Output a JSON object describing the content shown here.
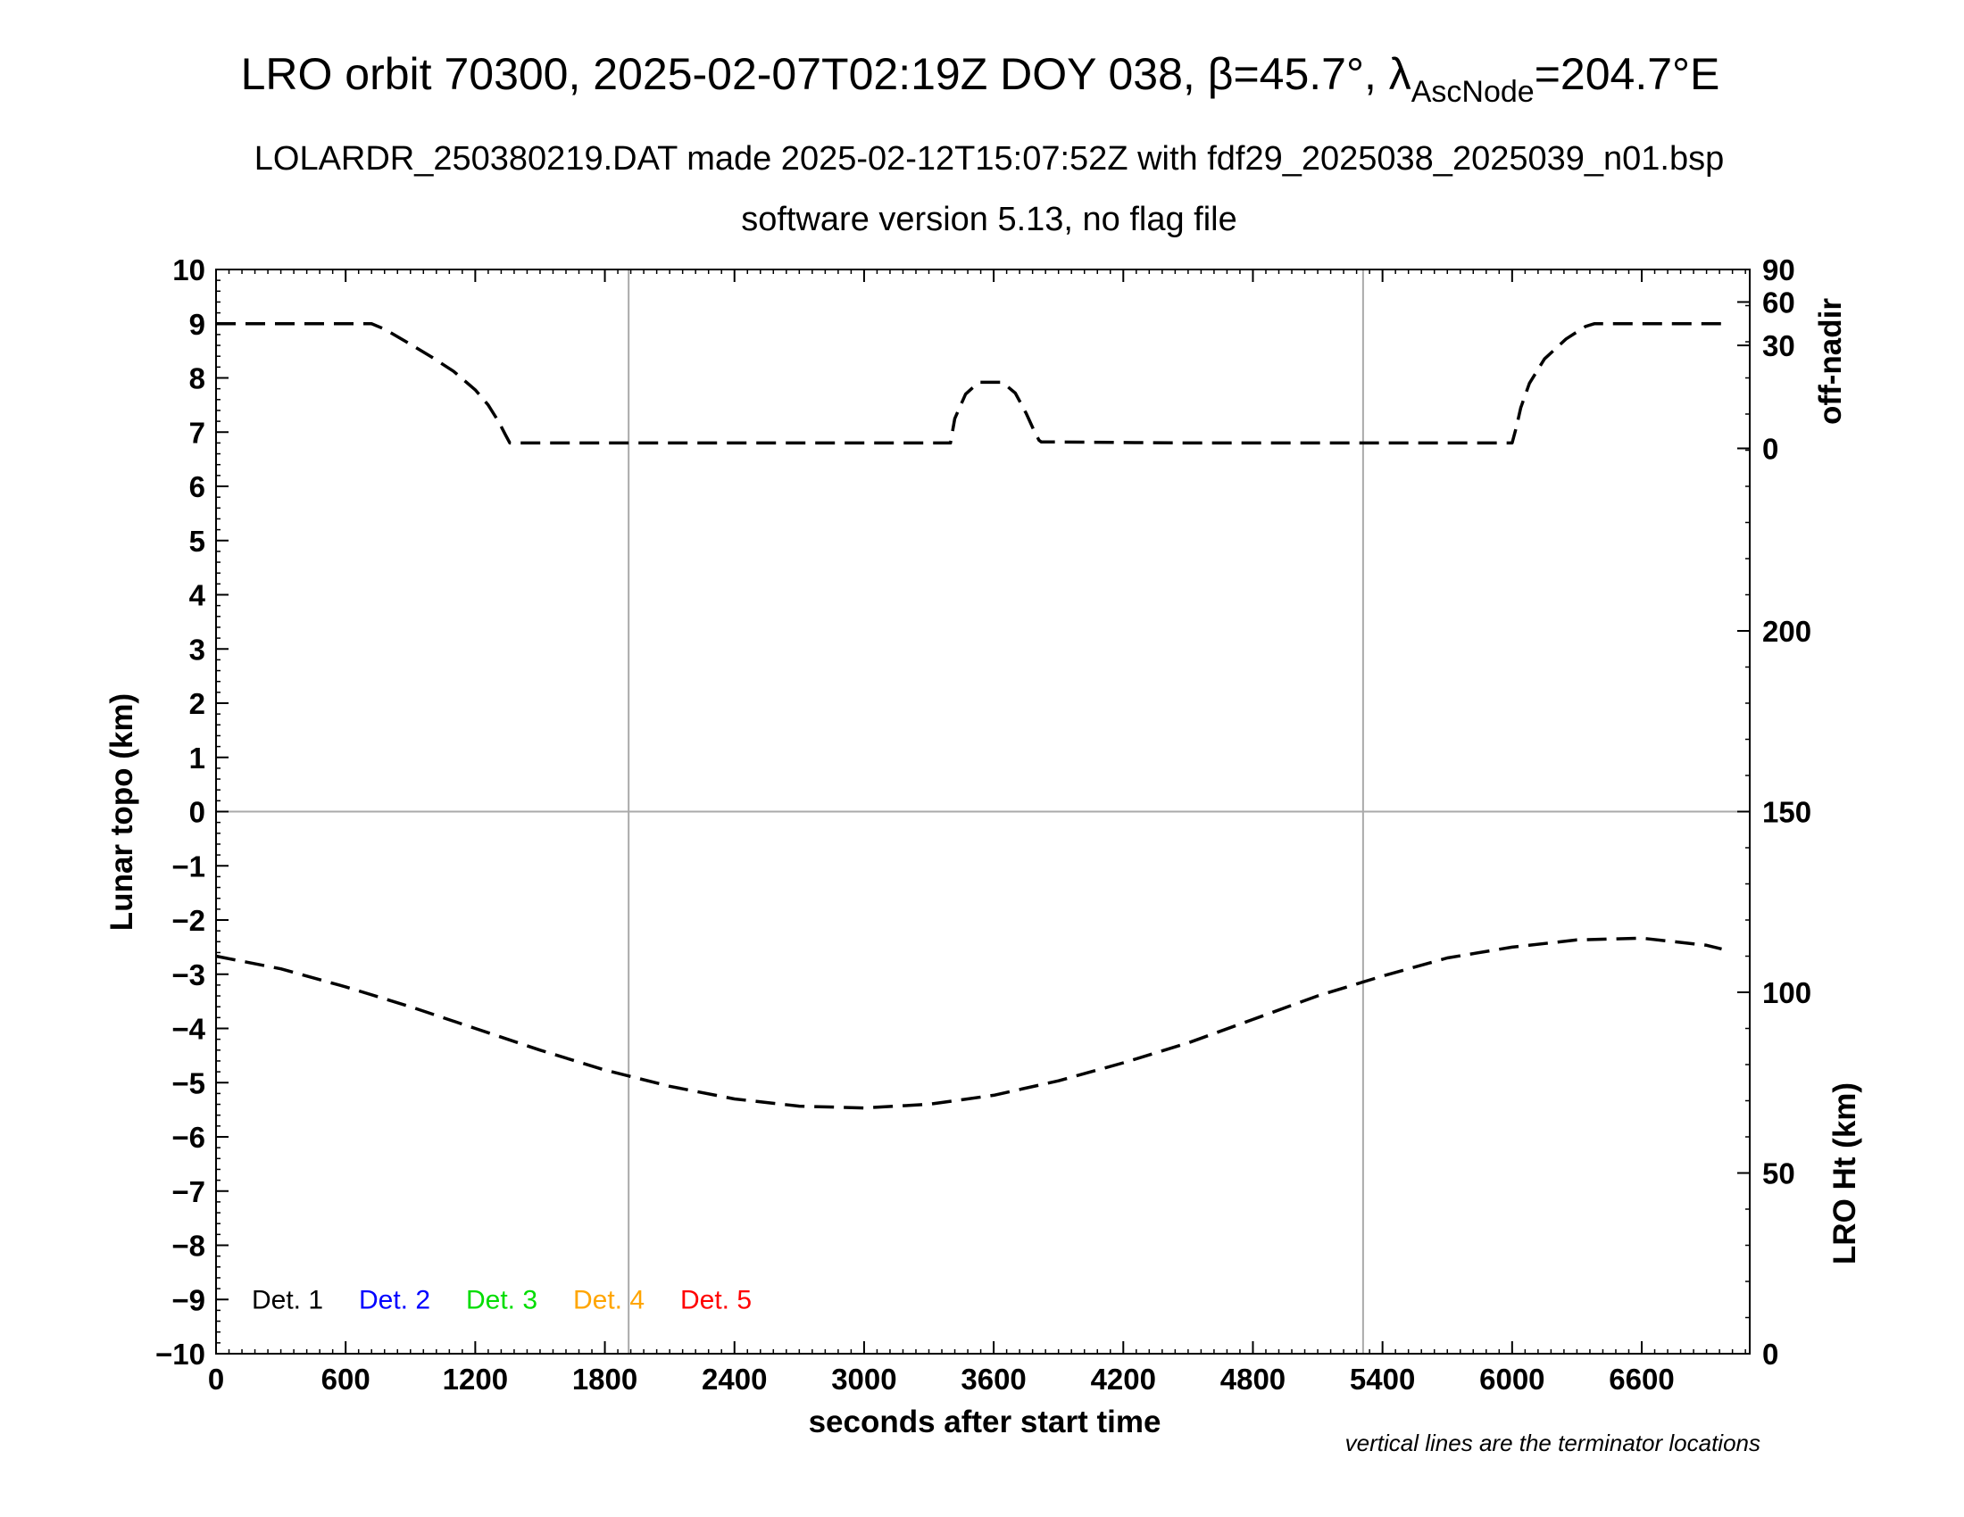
{
  "chart_data": {
    "type": "line",
    "title": {
      "prefix": "LRO orbit 70300, 2025-02-07T02:19Z DOY 038, ",
      "beta": "β",
      "beta_value": "=45.7°, ",
      "lambda": "λ",
      "lambda_sub": "AscNode",
      "lambda_value": "=204.7°E"
    },
    "subtitle_1": "LOLARDR_250380219.DAT made 2025-02-12T15:07:52Z with fdf29_2025038_2025039_n01.bsp",
    "subtitle_2": "software version 5.13, no flag file",
    "xlabel": "seconds after start time",
    "ylabel_left": "Lunar topo (km)",
    "ylabel_right_top": "off-nadir",
    "ylabel_right_bottom": "LRO Ht (km)",
    "note": "vertical lines are the terminator locations",
    "xlim": [
      0,
      7100
    ],
    "ylim_left": [
      -10,
      10
    ],
    "x_ticks": [
      "0",
      "600",
      "1200",
      "1800",
      "2400",
      "3000",
      "3600",
      "4200",
      "4800",
      "5400",
      "6000",
      "6600"
    ],
    "x_tick_values": [
      0,
      600,
      1200,
      1800,
      2400,
      3000,
      3600,
      4200,
      4800,
      5400,
      6000,
      6600
    ],
    "y_ticks_left": [
      "10",
      "9",
      "8",
      "7",
      "6",
      "5",
      "4",
      "3",
      "2",
      "1",
      "0",
      "−1",
      "−2",
      "−3",
      "−4",
      "−5",
      "−6",
      "−7",
      "−8",
      "−9",
      "−10"
    ],
    "y_tick_values_left": [
      10,
      9,
      8,
      7,
      6,
      5,
      4,
      3,
      2,
      1,
      0,
      -1,
      -2,
      -3,
      -4,
      -5,
      -6,
      -7,
      -8,
      -9,
      -10
    ],
    "right_top_ticks": [
      "90",
      "60",
      "30",
      "0"
    ],
    "right_top_tick_positions": [
      10,
      9.4,
      8.6,
      6.7
    ],
    "right_bottom_ticks": [
      "200",
      "150",
      "100",
      "50",
      "0"
    ],
    "right_bottom_tick_values": [
      200,
      150,
      100,
      50,
      0
    ],
    "right_bottom_range": [
      0,
      300
    ],
    "terminator_lines_x": [
      1910,
      5310
    ],
    "legend": [
      {
        "label": "Det. 1",
        "color": "#000000"
      },
      {
        "label": "Det. 2",
        "color": "#0000ff"
      },
      {
        "label": "Det. 3",
        "color": "#00dd00"
      },
      {
        "label": "Det. 4",
        "color": "#ffa500"
      },
      {
        "label": "Det. 5",
        "color": "#ff0000"
      }
    ],
    "series": [
      {
        "style": "dashed",
        "color": "#000000",
        "x": [
          0,
          720,
          780,
          900,
          1000,
          1100,
          1200,
          1260,
          1310,
          1340,
          1360,
          1800,
          3400,
          3420,
          3470,
          3530,
          3640,
          3700,
          3750,
          3790,
          3810,
          3820,
          4500,
          6000,
          6020,
          6040,
          6080,
          6150,
          6250,
          6340,
          6380,
          6970
        ],
        "y": [
          9.0,
          9.0,
          8.9,
          8.62,
          8.38,
          8.12,
          7.78,
          7.5,
          7.18,
          6.95,
          6.8,
          6.8,
          6.8,
          7.25,
          7.7,
          7.92,
          7.92,
          7.72,
          7.35,
          7.0,
          6.85,
          6.82,
          6.8,
          6.8,
          7.1,
          7.45,
          7.9,
          8.35,
          8.72,
          8.95,
          9.0,
          9.0
        ]
      },
      {
        "style": "dashed",
        "color": "#000000",
        "x": [
          0,
          300,
          600,
          900,
          1200,
          1500,
          1800,
          2100,
          2400,
          2700,
          3000,
          3300,
          3600,
          3900,
          4200,
          4500,
          4800,
          5100,
          5400,
          5700,
          6000,
          6300,
          6600,
          6900,
          6970
        ],
        "y": [
          110,
          106.5,
          101.5,
          96,
          90,
          84,
          78.5,
          74,
          70.5,
          68.5,
          68,
          69,
          71.5,
          75.5,
          80.5,
          86,
          92.5,
          99,
          104.5,
          109.5,
          112.5,
          114.5,
          115,
          113,
          112
        ]
      }
    ]
  }
}
